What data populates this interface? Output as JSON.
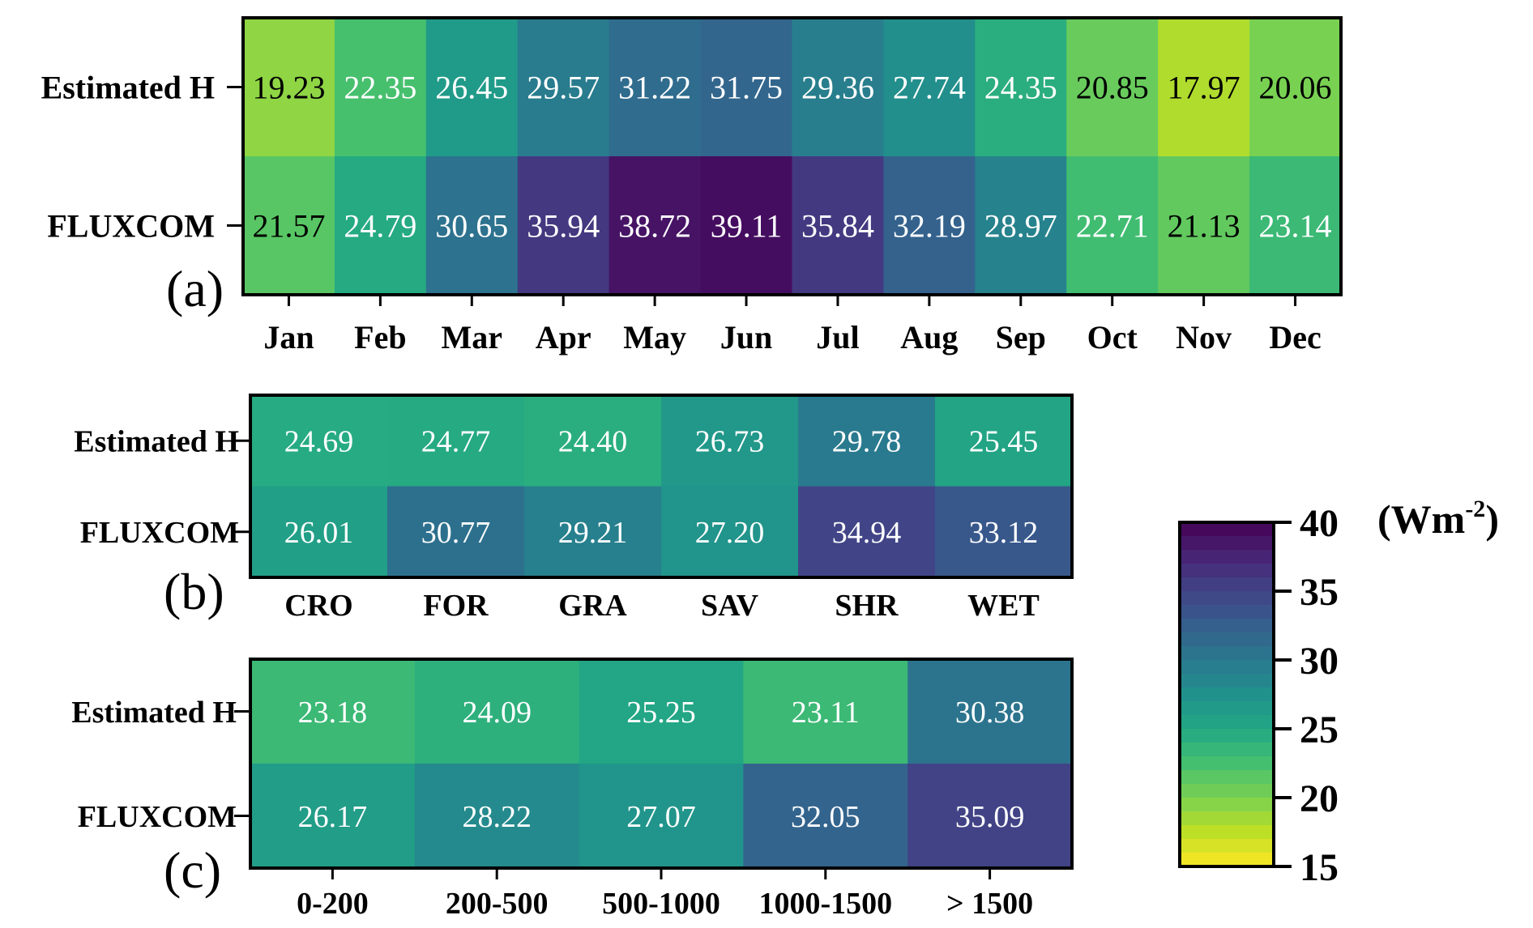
{
  "chart_data": [
    {
      "type": "heatmap",
      "panel_label": "(a)",
      "rows": [
        "Estimated H",
        "FLUXCOM"
      ],
      "columns": [
        "Jan",
        "Feb",
        "Mar",
        "Apr",
        "May",
        "Jun",
        "Jul",
        "Aug",
        "Sep",
        "Oct",
        "Nov",
        "Dec"
      ],
      "values": [
        [
          "19.23",
          "22.35",
          "26.45",
          "29.57",
          "31.22",
          "31.75",
          "29.36",
          "27.74",
          "24.35",
          "20.85",
          "17.97",
          "20.06"
        ],
        [
          "21.57",
          "24.79",
          "30.65",
          "35.94",
          "38.72",
          "39.11",
          "35.84",
          "32.19",
          "28.97",
          "22.71",
          "21.13",
          "23.14"
        ]
      ]
    },
    {
      "type": "heatmap",
      "panel_label": "(b)",
      "rows": [
        "Estimated H",
        "FLUXCOM"
      ],
      "columns": [
        "CRO",
        "FOR",
        "GRA",
        "SAV",
        "SHR",
        "WET"
      ],
      "values": [
        [
          "24.69",
          "24.77",
          "24.40",
          "26.73",
          "29.78",
          "25.45"
        ],
        [
          "26.01",
          "30.77",
          "29.21",
          "27.20",
          "34.94",
          "33.12"
        ]
      ]
    },
    {
      "type": "heatmap",
      "panel_label": "(c)",
      "rows": [
        "Estimated H",
        "FLUXCOM"
      ],
      "columns": [
        "0-200",
        "200-500",
        "500-1000",
        "1000-1500",
        "> 1500"
      ],
      "values": [
        [
          "23.18",
          "24.09",
          "25.25",
          "23.11",
          "30.38"
        ],
        [
          "26.17",
          "28.22",
          "27.07",
          "32.05",
          "35.09"
        ]
      ]
    }
  ],
  "colorbar": {
    "colormap": "viridis (reversed)",
    "range": [
      15,
      40
    ],
    "ticks": [
      "40",
      "35",
      "30",
      "25",
      "20",
      "15"
    ],
    "unit_text": "(Wm",
    "unit_sup": "-2",
    "unit_close": ")",
    "text_color_light": "#ffffff",
    "text_color_dark": "#000000"
  }
}
